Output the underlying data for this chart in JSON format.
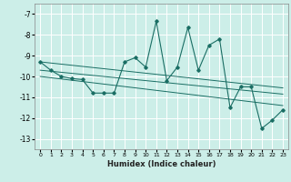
{
  "xlabel": "Humidex (Indice chaleur)",
  "bg_color": "#cceee8",
  "grid_color": "#ffffff",
  "line_color": "#1a6e64",
  "xlim": [
    -0.5,
    23.5
  ],
  "ylim": [
    -13.5,
    -6.5
  ],
  "yticks": [
    -13,
    -12,
    -11,
    -10,
    -9,
    -8,
    -7
  ],
  "xticks": [
    0,
    1,
    2,
    3,
    4,
    5,
    6,
    7,
    8,
    9,
    10,
    11,
    12,
    13,
    14,
    15,
    16,
    17,
    18,
    19,
    20,
    21,
    22,
    23
  ],
  "series1_x": [
    0,
    1,
    2,
    3,
    4,
    5,
    6,
    7,
    8,
    9,
    10,
    11,
    12,
    13,
    14,
    15,
    16,
    17,
    18,
    19,
    20,
    21,
    22,
    23
  ],
  "series1_y": [
    -9.3,
    -9.7,
    -10.0,
    -10.1,
    -10.15,
    -10.8,
    -10.8,
    -10.8,
    -9.3,
    -9.1,
    -9.55,
    -7.35,
    -10.2,
    -9.55,
    -7.65,
    -9.7,
    -8.5,
    -8.2,
    -11.5,
    -10.5,
    -10.5,
    -12.5,
    -12.1,
    -11.6
  ],
  "trend1_x": [
    0,
    23
  ],
  "trend1_y": [
    -9.3,
    -10.55
  ],
  "trend2_x": [
    0,
    23
  ],
  "trend2_y": [
    -9.7,
    -10.85
  ],
  "trend3_x": [
    0,
    23
  ],
  "trend3_y": [
    -10.0,
    -11.4
  ]
}
